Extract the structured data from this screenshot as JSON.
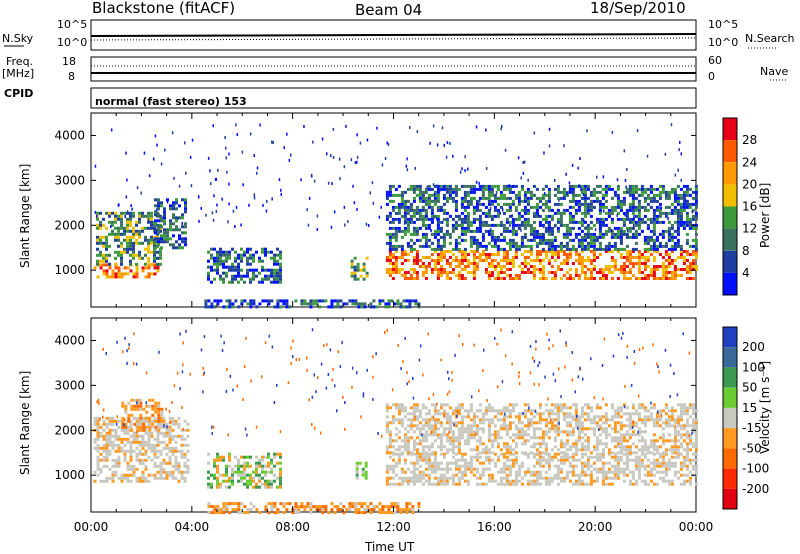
{
  "header": {
    "station": "Blackstone (fitACF)",
    "beam": "Beam 04",
    "date": "18/Sep/2010"
  },
  "panels": {
    "nsky": {
      "label": "N.Sky",
      "ticks": [
        "10^5",
        "10^0"
      ]
    },
    "nsearch": {
      "label": "N.Search",
      "ticks": [
        "10^5",
        "10^0"
      ]
    },
    "freq": {
      "label_top": "Freq.",
      "label_unit": "[MHz]",
      "ticks": [
        "18",
        "8"
      ]
    },
    "nave": {
      "label": "Nave",
      "ticks": [
        "60",
        "0"
      ]
    },
    "cpid": {
      "label": "CPID",
      "text": "normal (fast stereo) 153"
    }
  },
  "chart_data": [
    {
      "type": "heatmap",
      "name": "power",
      "ylabel": "Slant Range [km]",
      "xlabel": "",
      "y_ticks": [
        "4000",
        "3000",
        "2000",
        "1000"
      ],
      "ylim": [
        180,
        4500
      ],
      "colorbar": {
        "label": "Power [dB]",
        "ticks": [
          "28",
          "24",
          "20",
          "16",
          "12",
          "8",
          "4"
        ],
        "colors": [
          "#e8001a",
          "#ff5a00",
          "#ff9a00",
          "#f0c000",
          "#3c9a3c",
          "#3a7060",
          "#1e3fa0",
          "#0010ff"
        ]
      },
      "regions": [
        {
          "t0": 0.1,
          "t1": 2.6,
          "r0": 850,
          "r1": 1150,
          "level": "high"
        },
        {
          "t0": 0.2,
          "t1": 2.8,
          "r0": 1150,
          "r1": 2300,
          "level": "mid"
        },
        {
          "t0": 2.5,
          "t1": 3.8,
          "r0": 1500,
          "r1": 2600,
          "level": "low"
        },
        {
          "t0": 4.6,
          "t1": 7.5,
          "r0": 700,
          "r1": 1500,
          "level": "low"
        },
        {
          "t0": 10.3,
          "t1": 10.9,
          "r0": 800,
          "r1": 1300,
          "level": "mid"
        },
        {
          "t0": 11.7,
          "t1": 24,
          "r0": 800,
          "r1": 1450,
          "level": "high"
        },
        {
          "t0": 11.7,
          "t1": 24,
          "r0": 1450,
          "r1": 2900,
          "level": "low"
        },
        {
          "t0": 4.5,
          "t1": 13,
          "r0": 180,
          "r1": 350,
          "level": "low"
        }
      ]
    },
    {
      "type": "heatmap",
      "name": "velocity",
      "ylabel": "Slant Range [km]",
      "xlabel": "Time UT",
      "x_ticks": [
        "00:00",
        "04:00",
        "08:00",
        "12:00",
        "16:00",
        "20:00",
        "00:00"
      ],
      "y_ticks": [
        "4000",
        "3000",
        "2000",
        "1000"
      ],
      "ylim": [
        180,
        4500
      ],
      "colorbar": {
        "label": "Velocity [m s⁻¹]",
        "ticks": [
          "200",
          "100",
          "50",
          "15",
          "-15",
          "-50",
          "-100",
          "-200"
        ],
        "colors": [
          "#2040c0",
          "#3a6a9a",
          "#3a9a50",
          "#6acc30",
          "#c8c8c0",
          "#ff9a20",
          "#ff6a00",
          "#ff2a00",
          "#e00010"
        ]
      },
      "regions": [
        {
          "t0": 0.1,
          "t1": 3.8,
          "r0": 850,
          "r1": 2300,
          "level": "ground"
        },
        {
          "t0": 1.2,
          "t1": 2.8,
          "r0": 2000,
          "r1": 2700,
          "level": "neg"
        },
        {
          "t0": 4.6,
          "t1": 7.5,
          "r0": 700,
          "r1": 1500,
          "level": "mixed"
        },
        {
          "t0": 10.5,
          "t1": 10.9,
          "r0": 900,
          "r1": 1300,
          "level": "pos"
        },
        {
          "t0": 11.7,
          "t1": 24,
          "r0": 800,
          "r1": 1500,
          "level": "ground"
        },
        {
          "t0": 11.7,
          "t1": 24,
          "r0": 1500,
          "r1": 2600,
          "level": "ground"
        },
        {
          "t0": 4.5,
          "t1": 13,
          "r0": 180,
          "r1": 400,
          "level": "neg"
        }
      ]
    }
  ]
}
